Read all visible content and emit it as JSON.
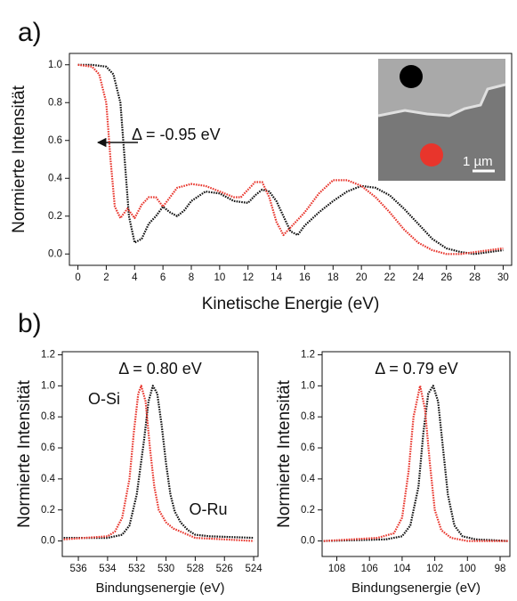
{
  "chart_data": [
    {
      "type": "line",
      "label": "a)",
      "x_label": "Kinetische Energie (eV)",
      "y_label": "Normierte Intensität",
      "xlim": [
        -0.6,
        30.6
      ],
      "ylim": [
        -0.06,
        1.06
      ],
      "xticks": [
        0,
        2,
        4,
        6,
        8,
        10,
        12,
        14,
        16,
        18,
        20,
        22,
        24,
        26,
        28,
        30
      ],
      "yticks": [
        {
          "value": 0,
          "label": "0.0"
        },
        0.2,
        0.4,
        0.6,
        0.8,
        {
          "value": 1,
          "label": "1.0"
        }
      ],
      "annotations": [
        "Δ = -0.95 eV",
        "1 µm"
      ],
      "series": [
        {
          "color": "#111111",
          "x": [
            0,
            1,
            2,
            2.5,
            3,
            3.3,
            3.6,
            4,
            4.5,
            5,
            5.5,
            6,
            6.5,
            7,
            7.5,
            8,
            9,
            10,
            11,
            12,
            12.5,
            13,
            13.5,
            14,
            14.5,
            15,
            15.5,
            16,
            17,
            18,
            19,
            20,
            21,
            22,
            23,
            24,
            25,
            26,
            27,
            28,
            29,
            30
          ],
          "values": [
            1.0,
            1.0,
            0.99,
            0.95,
            0.8,
            0.5,
            0.2,
            0.06,
            0.08,
            0.16,
            0.2,
            0.25,
            0.22,
            0.2,
            0.23,
            0.28,
            0.33,
            0.32,
            0.28,
            0.27,
            0.31,
            0.34,
            0.33,
            0.28,
            0.2,
            0.12,
            0.1,
            0.15,
            0.22,
            0.28,
            0.33,
            0.36,
            0.35,
            0.31,
            0.24,
            0.16,
            0.08,
            0.03,
            0.01,
            0.0,
            0.01,
            0.02
          ]
        },
        {
          "color": "#e8352c",
          "x": [
            0,
            1,
            1.5,
            2,
            2.3,
            2.6,
            3,
            3.5,
            4,
            4.5,
            5,
            5.5,
            6,
            6.5,
            7,
            8,
            9,
            10,
            11,
            11.5,
            12,
            12.5,
            13,
            13.5,
            14,
            14.5,
            15,
            16,
            17,
            18,
            19,
            20,
            21,
            22,
            23,
            24,
            25,
            26,
            27,
            28,
            29,
            30
          ],
          "values": [
            1.0,
            0.99,
            0.95,
            0.8,
            0.5,
            0.25,
            0.19,
            0.24,
            0.19,
            0.26,
            0.3,
            0.3,
            0.25,
            0.3,
            0.35,
            0.37,
            0.36,
            0.33,
            0.3,
            0.3,
            0.34,
            0.38,
            0.38,
            0.3,
            0.17,
            0.1,
            0.14,
            0.22,
            0.32,
            0.39,
            0.39,
            0.36,
            0.3,
            0.22,
            0.13,
            0.06,
            0.02,
            0.0,
            0.0,
            0.01,
            0.02,
            0.03
          ]
        }
      ]
    },
    {
      "type": "line",
      "label": "b)",
      "x_label": "Bindungsenergie (eV)",
      "y_label": "Normierte Intensität",
      "xlim": [
        537.1,
        523.7
      ],
      "ylim": [
        -0.1,
        1.22
      ],
      "xticks": [
        536,
        534,
        532,
        530,
        528,
        526,
        524
      ],
      "yticks": [
        {
          "value": 0,
          "label": "0.0"
        },
        0.2,
        0.4,
        0.6,
        0.8,
        {
          "value": 1,
          "label": "1.0"
        },
        1.2
      ],
      "annotations": [
        "Δ = 0.80 eV",
        "O-Si",
        "O-Ru"
      ],
      "series": [
        {
          "color": "#111111",
          "x": [
            537,
            534,
            533,
            532.5,
            532,
            531.5,
            531.2,
            530.9,
            530.6,
            530.3,
            530,
            529.7,
            529.4,
            529,
            528.5,
            528,
            527,
            524
          ],
          "values": [
            0.02,
            0.02,
            0.04,
            0.1,
            0.3,
            0.65,
            0.9,
            1.0,
            0.95,
            0.75,
            0.5,
            0.3,
            0.19,
            0.12,
            0.07,
            0.04,
            0.03,
            0.02
          ]
        },
        {
          "color": "#e8352c",
          "x": [
            537,
            534,
            533.5,
            533,
            532.5,
            532.2,
            531.9,
            531.7,
            531.4,
            531.1,
            530.8,
            530.5,
            530,
            529.5,
            529,
            528.5,
            528,
            526,
            524
          ],
          "values": [
            0.01,
            0.03,
            0.06,
            0.15,
            0.4,
            0.7,
            0.95,
            1.0,
            0.9,
            0.6,
            0.35,
            0.2,
            0.12,
            0.08,
            0.06,
            0.04,
            0.02,
            0.01,
            0.0
          ]
        }
      ]
    },
    {
      "type": "line",
      "x_label": "Bindungsenergie (eV)",
      "y_label": "Normierte Intensität",
      "xlim": [
        108.9,
        97.4
      ],
      "ylim": [
        -0.1,
        1.22
      ],
      "xticks": [
        108,
        106,
        104,
        102,
        100,
        98
      ],
      "yticks": [
        {
          "value": 0,
          "label": "0.0"
        },
        0.2,
        0.4,
        0.6,
        0.8,
        {
          "value": 1,
          "label": "1.0"
        },
        1.2
      ],
      "annotations": [
        "Δ = 0.79 eV"
      ],
      "series": [
        {
          "color": "#111111",
          "x": [
            108.8,
            105,
            104,
            103.5,
            103,
            102.7,
            102.4,
            102.1,
            101.8,
            101.5,
            101.2,
            100.8,
            100.3,
            99.5,
            97.5
          ],
          "values": [
            0.0,
            0.01,
            0.03,
            0.1,
            0.35,
            0.7,
            0.95,
            1.0,
            0.9,
            0.6,
            0.3,
            0.1,
            0.03,
            0.01,
            0.0
          ]
        },
        {
          "color": "#e8352c",
          "x": [
            108.8,
            105.5,
            104.5,
            104,
            103.6,
            103.3,
            102.9,
            102.6,
            102.3,
            102,
            101.6,
            101,
            100,
            97.5
          ],
          "values": [
            0.0,
            0.02,
            0.05,
            0.15,
            0.45,
            0.8,
            1.0,
            0.85,
            0.5,
            0.2,
            0.07,
            0.02,
            0.0,
            0.0
          ]
        }
      ]
    }
  ]
}
